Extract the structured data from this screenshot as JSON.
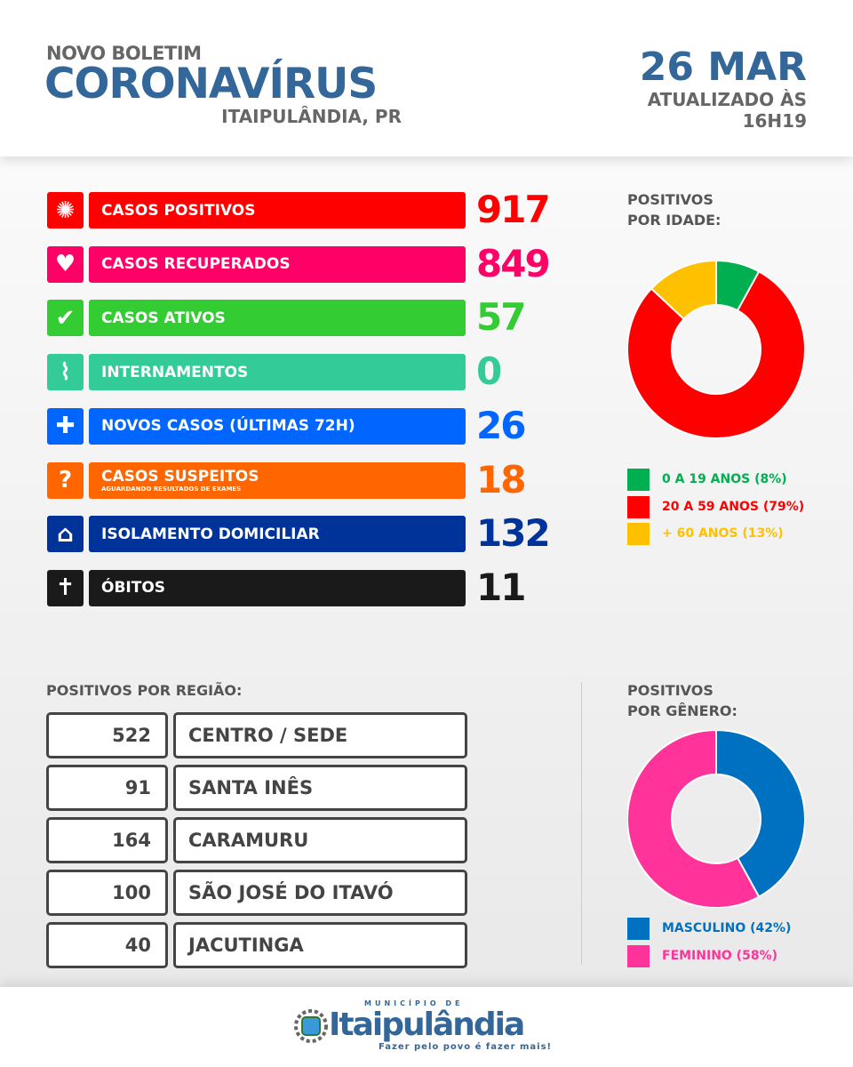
{
  "header": {
    "kicker": "NOVO BOLETIM",
    "title": "CORONAVÍRUS",
    "city": "ITAIPULÂNDIA, PR",
    "date": "26 MAR",
    "updated_label": "ATUALIZADO ÀS",
    "updated_time": "16H19"
  },
  "stats": [
    {
      "label": "CASOS POSITIVOS",
      "sub": "",
      "value": "917",
      "color": "#ff0000",
      "icon": "virus-icon"
    },
    {
      "label": "CASOS RECUPERADOS",
      "sub": "",
      "value": "849",
      "color": "#ff0066",
      "icon": "heart-icon"
    },
    {
      "label": "CASOS ATIVOS",
      "sub": "",
      "value": "57",
      "color": "#33cc33",
      "icon": "check-icon"
    },
    {
      "label": "INTERNAMENTOS",
      "sub": "",
      "value": "0",
      "color": "#33cc99",
      "icon": "heartbeat-icon"
    },
    {
      "label": "NOVOS CASOS (ÚLTIMAS 72H)",
      "sub": "",
      "value": "26",
      "color": "#0066ff",
      "icon": "plus-icon"
    },
    {
      "label": "CASOS SUSPEITOS",
      "sub": "AGUARDANDO RESULTADOS DE EXAMES",
      "value": "18",
      "color": "#ff6600",
      "icon": "question-icon"
    },
    {
      "label": "ISOLAMENTO DOMICILIAR",
      "sub": "",
      "value": "132",
      "color": "#003399",
      "icon": "house-icon"
    },
    {
      "label": "ÓBITOS",
      "sub": "",
      "value": "11",
      "color": "#1a1a1a",
      "icon": "cross-icon"
    }
  ],
  "regions": {
    "title": "POSITIVOS POR REGIÃO:",
    "rows": [
      {
        "value": "522",
        "name": "CENTRO / SEDE"
      },
      {
        "value": "91",
        "name": "SANTA INÊS"
      },
      {
        "value": "164",
        "name": "CARAMURU"
      },
      {
        "value": "100",
        "name": "SÃO JOSÉ DO ITAVÓ"
      },
      {
        "value": "40",
        "name": "JACUTINGA"
      }
    ]
  },
  "chart_data": [
    {
      "type": "pie",
      "donut": true,
      "title": "POSITIVOS POR IDADE:",
      "categories": [
        "0 A 19 ANOS (8%)",
        "20 A 59 ANOS (79%)",
        "+ 60 ANOS (13%)"
      ],
      "values": [
        8,
        79,
        13
      ],
      "colors": [
        "#00b050",
        "#ff0000",
        "#ffc000"
      ],
      "legend": "bottom"
    },
    {
      "type": "pie",
      "donut": true,
      "title": "POSITIVOS POR GÊNERO:",
      "categories": [
        "MASCULINO (42%)",
        "FEMININO (58%)"
      ],
      "values": [
        42,
        58
      ],
      "colors": [
        "#0070c0",
        "#ff3399"
      ],
      "legend": "bottom"
    }
  ],
  "footer": {
    "logo_top": "MUNICÍPIO DE",
    "logo_name": "Itaipulândia",
    "logo_slogan": "Fazer pelo povo é fazer mais!"
  }
}
